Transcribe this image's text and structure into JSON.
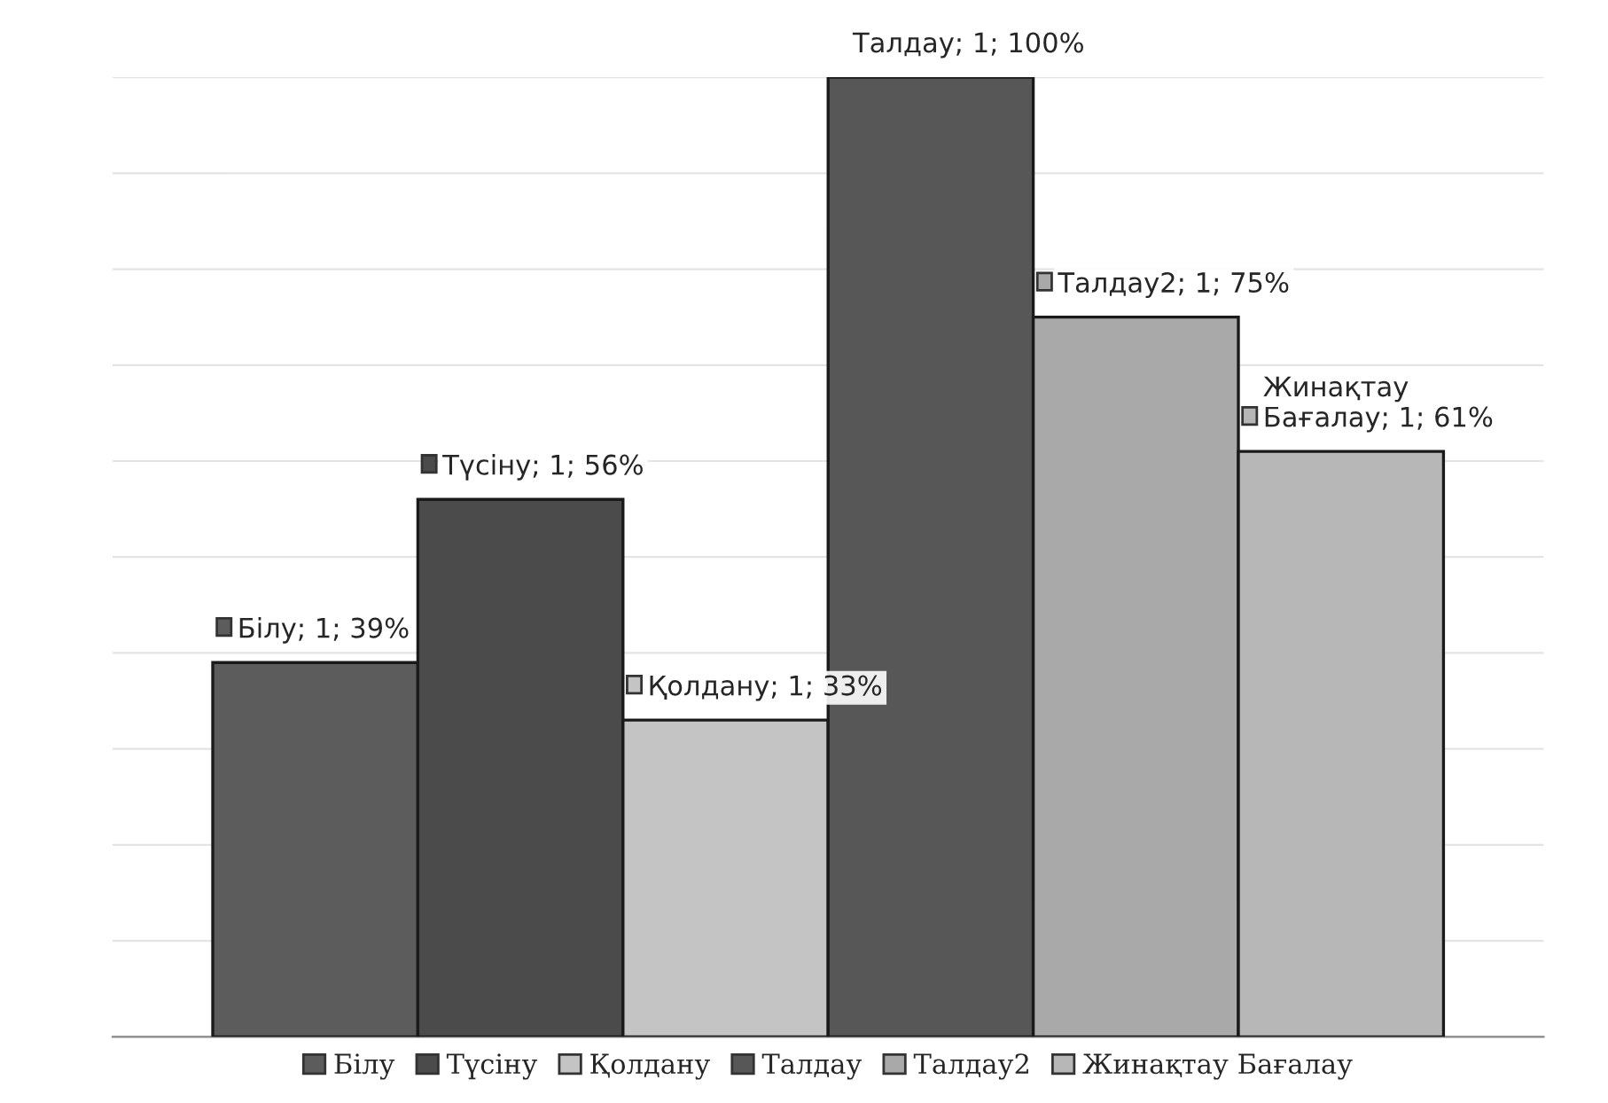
{
  "chart_data": {
    "type": "bar",
    "categories": [
      null
    ],
    "series": [
      {
        "name": "Білу",
        "color": "#5c5c5c",
        "values": [
          39
        ],
        "value_labels": [
          "Білу; 1; 39%"
        ]
      },
      {
        "name": "Түсіну",
        "color": "#4b4b4b",
        "values": [
          56
        ],
        "value_labels": [
          "Түсіну; 1; 56%"
        ]
      },
      {
        "name": "Қолдану",
        "color": "#c4c4c4",
        "values": [
          33
        ],
        "value_labels": [
          "Қолдану; 1; 33%"
        ]
      },
      {
        "name": "Талдау",
        "color": "#575757",
        "values": [
          100
        ],
        "value_labels": [
          "Талдау; 1; 100%"
        ]
      },
      {
        "name": "Талдау2",
        "color": "#a9a9a9",
        "values": [
          75
        ],
        "value_labels": [
          "Талдау2; 1; 75%"
        ]
      },
      {
        "name": "Жинақтау Бағалау",
        "color": "#b7b7b7",
        "values": [
          61
        ],
        "value_labels": [
          "Жинақтау\nБағалау; 1; 61%"
        ]
      }
    ],
    "ylim": [
      0,
      100
    ],
    "yticks": [
      {
        "value": 0,
        "label": null
      },
      {
        "value": 10,
        "label": null
      },
      {
        "value": 20,
        "label": null
      },
      {
        "value": 30,
        "label": null
      },
      {
        "value": 40,
        "label": null
      },
      {
        "value": 50,
        "label": null
      },
      {
        "value": 60,
        "label": null
      },
      {
        "value": 70,
        "label": null
      },
      {
        "value": 80,
        "label": null
      },
      {
        "value": 90,
        "label": null
      },
      {
        "value": 100,
        "label": null
      }
    ],
    "grid": "y",
    "legend": "bottom"
  }
}
